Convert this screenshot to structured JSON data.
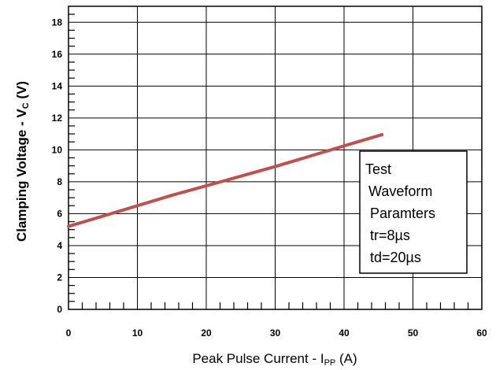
{
  "chart_data": {
    "type": "line",
    "xlabel": "Peak Pulse Current - I",
    "xlabel_sub": "PP",
    "xlabel_unit": " (A)",
    "ylabel": "Clamping Voltage - V",
    "ylabel_sub": "C",
    "ylabel_unit": " (V)",
    "xlim": [
      0,
      60
    ],
    "ylim": [
      0,
      19
    ],
    "x_ticks": [
      "0",
      "10",
      "20",
      "30",
      "40",
      "50",
      "60"
    ],
    "y_ticks": [
      "0",
      "2",
      "4",
      "6",
      "8",
      "10",
      "12",
      "14",
      "16",
      "18"
    ],
    "grid": true,
    "series": [
      {
        "color": "#c0504d",
        "x": [
          0,
          5,
          10,
          15,
          20,
          25,
          30,
          35,
          40,
          45.5
        ],
        "y": [
          5.2,
          5.85,
          6.5,
          7.15,
          7.75,
          8.35,
          8.95,
          9.6,
          10.25,
          10.95
        ]
      }
    ],
    "annotation": {
      "lines": [
        "Test",
        "Waveform",
        "Paramters",
        "tr=8µs",
        "td=20µs"
      ]
    }
  }
}
